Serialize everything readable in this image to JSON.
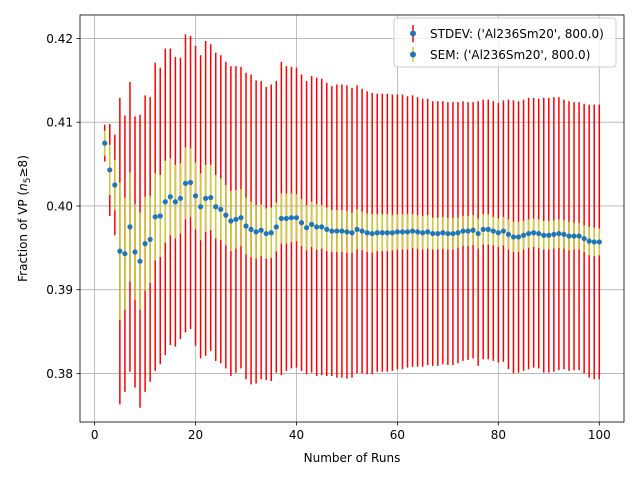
{
  "chart_data": {
    "type": "scatter",
    "xlabel": "Number of Runs",
    "ylabel_prefix": "Fraction of VP (",
    "ylabel_math_base": "n",
    "ylabel_math_sub": "5",
    "ylabel_suffix": "≥8)",
    "xlim": [
      -2.9,
      104.9
    ],
    "ylim": [
      0.3742,
      0.4228
    ],
    "xticks": [
      0,
      20,
      40,
      60,
      80,
      100
    ],
    "yticks": [
      0.38,
      0.39,
      0.4,
      0.41,
      0.42
    ],
    "ytick_labels": [
      "0.38",
      "0.39",
      "0.40",
      "0.41",
      "0.42"
    ],
    "grid": true,
    "legend_position": "top-right",
    "colors": {
      "stdev": "#ff0000",
      "sem": "#cccc33",
      "marker": "#1f77b4",
      "grid": "#b0b0b0"
    },
    "series": [
      {
        "name": "STDEV: ('Al236Sm20', 800.0)",
        "kind": "errorbar",
        "color": "#ff0000"
      },
      {
        "name": "SEM: ('Al236Sm20', 800.0)",
        "kind": "errorbar",
        "color": "#cccc33"
      }
    ],
    "x": [
      2,
      3,
      4,
      5,
      6,
      7,
      8,
      9,
      10,
      11,
      12,
      13,
      14,
      15,
      16,
      17,
      18,
      19,
      20,
      21,
      22,
      23,
      24,
      25,
      26,
      27,
      28,
      29,
      30,
      31,
      32,
      33,
      34,
      35,
      36,
      37,
      38,
      39,
      40,
      41,
      42,
      43,
      44,
      45,
      46,
      47,
      48,
      49,
      50,
      51,
      52,
      53,
      54,
      55,
      56,
      57,
      58,
      59,
      60,
      61,
      62,
      63,
      64,
      65,
      66,
      67,
      68,
      69,
      70,
      71,
      72,
      73,
      74,
      75,
      76,
      77,
      78,
      79,
      80,
      81,
      82,
      83,
      84,
      85,
      86,
      87,
      88,
      89,
      90,
      91,
      92,
      93,
      94,
      95,
      96,
      97,
      98,
      99,
      100
    ],
    "y": [
      0.4075,
      0.4043,
      0.4025,
      0.3946,
      0.3943,
      0.3975,
      0.3945,
      0.3934,
      0.3955,
      0.396,
      0.3987,
      0.3988,
      0.4005,
      0.4011,
      0.4005,
      0.4009,
      0.4027,
      0.4028,
      0.4012,
      0.3999,
      0.4009,
      0.401,
      0.3999,
      0.3996,
      0.3989,
      0.3982,
      0.3984,
      0.3986,
      0.3976,
      0.3972,
      0.3969,
      0.3971,
      0.3967,
      0.3968,
      0.3975,
      0.3985,
      0.3985,
      0.3986,
      0.3986,
      0.398,
      0.3974,
      0.3978,
      0.3975,
      0.3975,
      0.3972,
      0.397,
      0.397,
      0.397,
      0.3969,
      0.3968,
      0.3972,
      0.397,
      0.3968,
      0.3967,
      0.3968,
      0.3968,
      0.3968,
      0.3968,
      0.3969,
      0.3969,
      0.3969,
      0.397,
      0.3969,
      0.3968,
      0.3969,
      0.3967,
      0.3967,
      0.3968,
      0.3967,
      0.3967,
      0.3968,
      0.397,
      0.397,
      0.3971,
      0.3967,
      0.3972,
      0.3972,
      0.397,
      0.3968,
      0.397,
      0.3966,
      0.3963,
      0.3963,
      0.3965,
      0.3967,
      0.3968,
      0.3967,
      0.3965,
      0.3965,
      0.3966,
      0.3967,
      0.3966,
      0.3964,
      0.3964,
      0.3964,
      0.3961,
      0.3958,
      0.3957,
      0.3957
    ],
    "stdev": [
      0.0022,
      0.0055,
      0.006,
      0.0183,
      0.0165,
      0.0173,
      0.0162,
      0.0175,
      0.0177,
      0.017,
      0.0184,
      0.0177,
      0.0183,
      0.0177,
      0.0173,
      0.0168,
      0.0178,
      0.0175,
      0.0179,
      0.0181,
      0.0188,
      0.0183,
      0.0184,
      0.0184,
      0.0183,
      0.0185,
      0.0183,
      0.018,
      0.0183,
      0.0185,
      0.0181,
      0.0178,
      0.0175,
      0.0177,
      0.0174,
      0.0187,
      0.0182,
      0.018,
      0.0179,
      0.0177,
      0.0175,
      0.0177,
      0.0178,
      0.0177,
      0.0175,
      0.0173,
      0.0175,
      0.0175,
      0.0175,
      0.0173,
      0.0172,
      0.017,
      0.0169,
      0.0168,
      0.0166,
      0.0166,
      0.0166,
      0.0165,
      0.0164,
      0.0164,
      0.0162,
      0.0162,
      0.0161,
      0.016,
      0.0159,
      0.0158,
      0.0158,
      0.0157,
      0.0157,
      0.0157,
      0.0156,
      0.0155,
      0.0154,
      0.0153,
      0.0158,
      0.0155,
      0.0155,
      0.0155,
      0.0155,
      0.0156,
      0.0161,
      0.0163,
      0.0162,
      0.0162,
      0.0162,
      0.0161,
      0.0161,
      0.0164,
      0.0164,
      0.0164,
      0.0163,
      0.0161,
      0.0161,
      0.016,
      0.016,
      0.0161,
      0.0163,
      0.0164,
      0.0164
    ],
    "sem": [
      0.0015,
      0.003,
      0.003,
      0.0082,
      0.0067,
      0.0065,
      0.0057,
      0.0058,
      0.0056,
      0.0052,
      0.0052,
      0.0049,
      0.0049,
      0.0046,
      0.0044,
      0.0042,
      0.0043,
      0.0041,
      0.004,
      0.004,
      0.004,
      0.0039,
      0.0038,
      0.0037,
      0.0036,
      0.0036,
      0.0035,
      0.0034,
      0.0034,
      0.0033,
      0.0032,
      0.0031,
      0.003,
      0.003,
      0.0029,
      0.003,
      0.003,
      0.0029,
      0.0028,
      0.0028,
      0.0027,
      0.0027,
      0.0027,
      0.0026,
      0.0026,
      0.0025,
      0.0025,
      0.0025,
      0.0025,
      0.0024,
      0.0024,
      0.0023,
      0.0023,
      0.0023,
      0.0022,
      0.0022,
      0.0022,
      0.0021,
      0.0021,
      0.0021,
      0.0021,
      0.002,
      0.002,
      0.002,
      0.002,
      0.0019,
      0.0019,
      0.0019,
      0.0019,
      0.0019,
      0.0018,
      0.0018,
      0.0018,
      0.0018,
      0.0018,
      0.0018,
      0.0018,
      0.0017,
      0.0017,
      0.0017,
      0.0018,
      0.0018,
      0.0018,
      0.0017,
      0.0017,
      0.0017,
      0.0017,
      0.0017,
      0.0017,
      0.0017,
      0.0017,
      0.0017,
      0.0017,
      0.0016,
      0.0016,
      0.0016,
      0.0017,
      0.0017,
      0.0016
    ]
  }
}
